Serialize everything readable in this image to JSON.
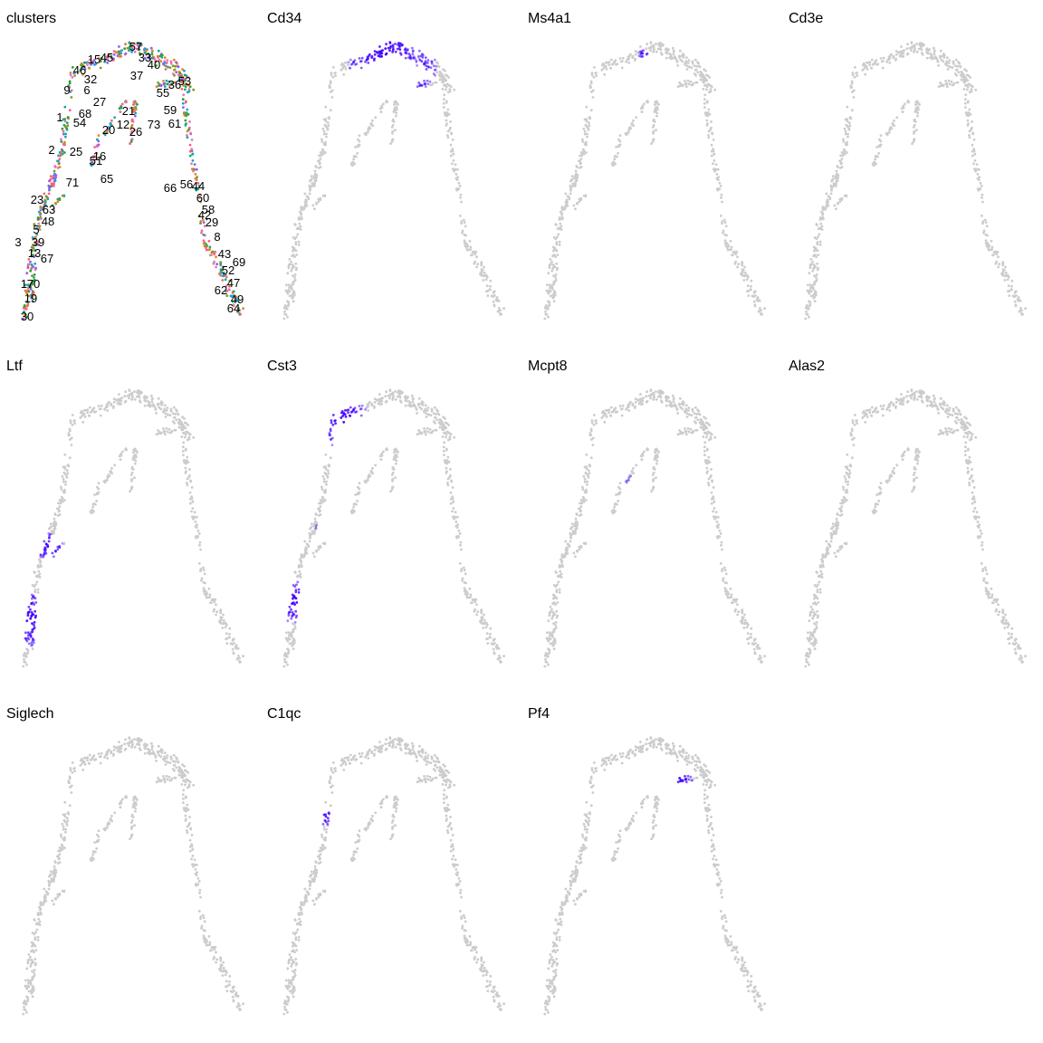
{
  "colors": {
    "background": "#ffffff",
    "cell_low": "#cccccc",
    "cell_high": "#3f00ff"
  },
  "chart_data": [
    {
      "type": "scatter",
      "title": "clusters",
      "color_by": "cluster",
      "point_colors_sample": [
        "#e76f51",
        "#d98c1f",
        "#7f9a1a",
        "#2ca02c",
        "#16a89a",
        "#1f9de0",
        "#9b59f0",
        "#e377c2",
        "#ff5f87"
      ],
      "cluster_labels": [
        "1",
        "2",
        "3",
        "5",
        "6",
        "8",
        "9",
        "12",
        "13",
        "15",
        "16",
        "17",
        "19",
        "20",
        "21",
        "23",
        "25",
        "26",
        "27",
        "29",
        "30",
        "32",
        "33",
        "36",
        "37",
        "39",
        "40",
        "42",
        "43",
        "44",
        "45",
        "46",
        "47",
        "48",
        "49",
        "51",
        "52",
        "53",
        "54",
        "55",
        "56",
        "57",
        "58",
        "59",
        "60",
        "61",
        "62",
        "63",
        "64",
        "65",
        "66",
        "67",
        "68",
        "69",
        "70",
        "71",
        "73"
      ],
      "grid": false,
      "axes": "none"
    },
    {
      "type": "scatter",
      "title": "Cd34",
      "color_by": "expression",
      "high_region": "apex / top arch"
    },
    {
      "type": "scatter",
      "title": "Ms4a1",
      "color_by": "expression",
      "high_region": "small cluster below apex"
    },
    {
      "type": "scatter",
      "title": "Cd3e",
      "color_by": "expression",
      "high_region": "isolated spot left-center"
    },
    {
      "type": "scatter",
      "title": "Ltf",
      "color_by": "expression",
      "high_region": "left branch tip"
    },
    {
      "type": "scatter",
      "title": "Cst3",
      "color_by": "expression",
      "high_region": "left arch and branches"
    },
    {
      "type": "scatter",
      "title": "Mcpt8",
      "color_by": "expression",
      "high_region": "short vertical branch"
    },
    {
      "type": "scatter",
      "title": "Alas2",
      "color_by": "expression",
      "high_region": "right branch clusters"
    },
    {
      "type": "scatter",
      "title": "Siglech",
      "color_by": "expression",
      "high_region": "small left cluster"
    },
    {
      "type": "scatter",
      "title": "C1qc",
      "color_by": "expression",
      "high_region": "small left cluster"
    },
    {
      "type": "scatter",
      "title": "Pf4",
      "color_by": "expression",
      "high_region": "upper right arm"
    }
  ]
}
